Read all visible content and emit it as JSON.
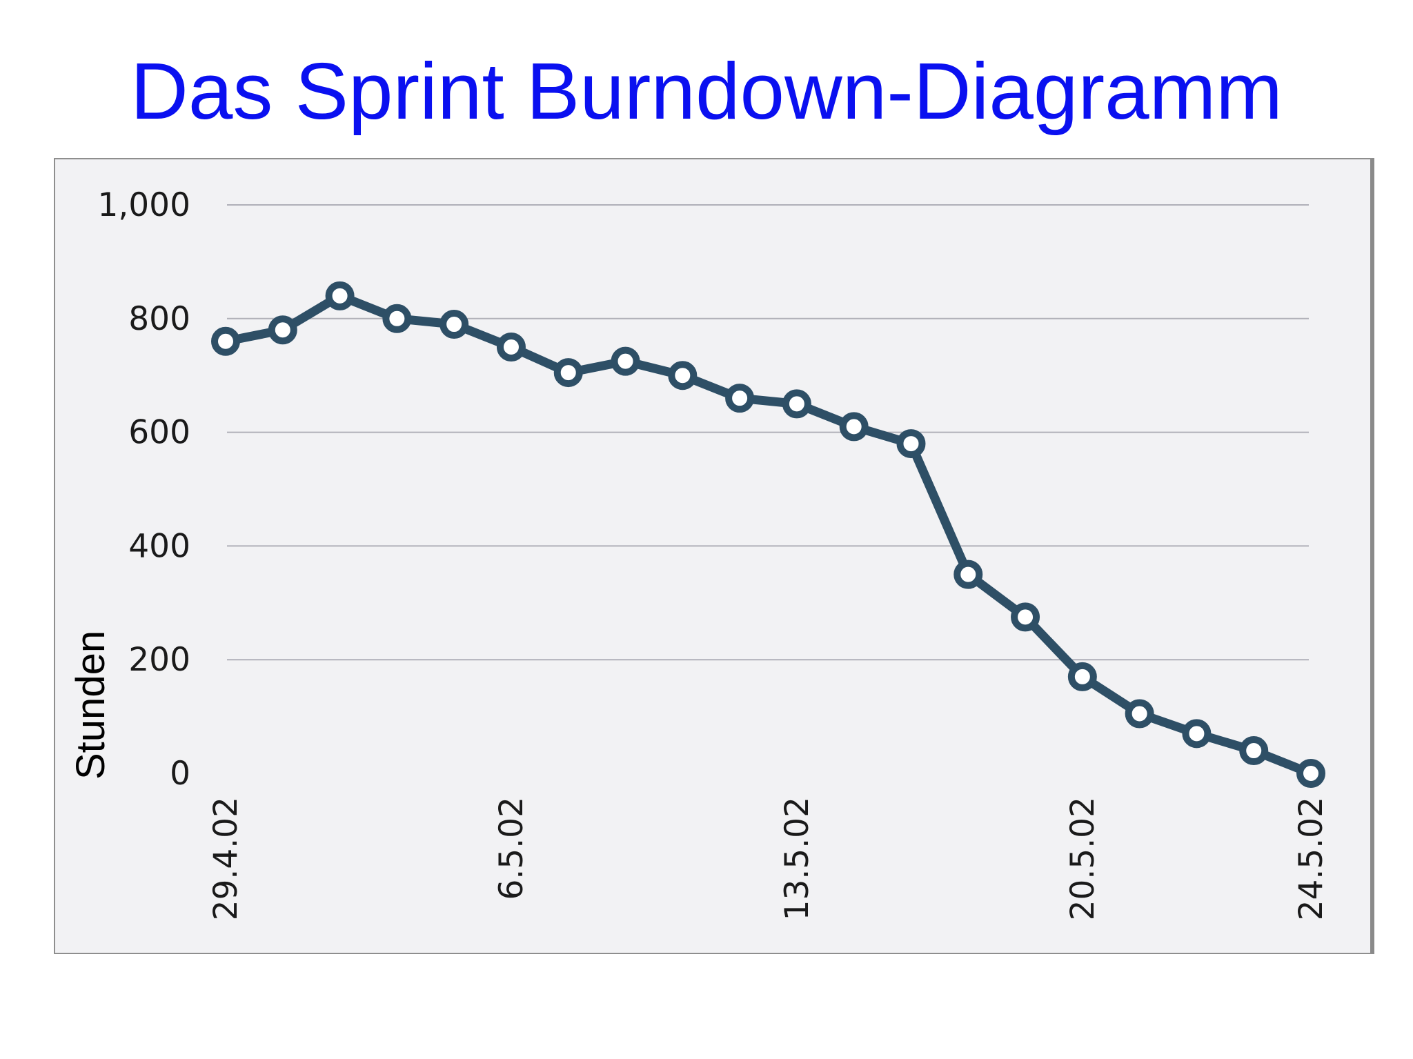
{
  "slide": {
    "title": "Das Sprint Burndown-Diagramm"
  },
  "colors": {
    "title": "#0a10f0",
    "line": "#2e4f66",
    "marker_fill": "#ffffff",
    "grid": "#b0b0b8",
    "plot_background": "#f2f2f4"
  },
  "chart_data": {
    "type": "line",
    "title": "",
    "xlabel": "",
    "ylabel": "Stunden",
    "ylim": [
      0,
      1000
    ],
    "y_ticks": [
      "0",
      "200",
      "400",
      "600",
      "800",
      "1,000"
    ],
    "y_tick_values": [
      0,
      200,
      400,
      600,
      800,
      1000
    ],
    "x_tick_labels": [
      "29.4.02",
      "6.5.02",
      "13.5.02",
      "20.5.02",
      "24.5.02"
    ],
    "x_tick_indices": [
      0,
      5,
      10,
      15,
      19
    ],
    "grid": true,
    "legend": "none",
    "series": [
      {
        "values": [
          760,
          780,
          840,
          800,
          790,
          750,
          705,
          725,
          700,
          660,
          650,
          610,
          580,
          350,
          275,
          170,
          105,
          70,
          40,
          0
        ]
      }
    ]
  }
}
